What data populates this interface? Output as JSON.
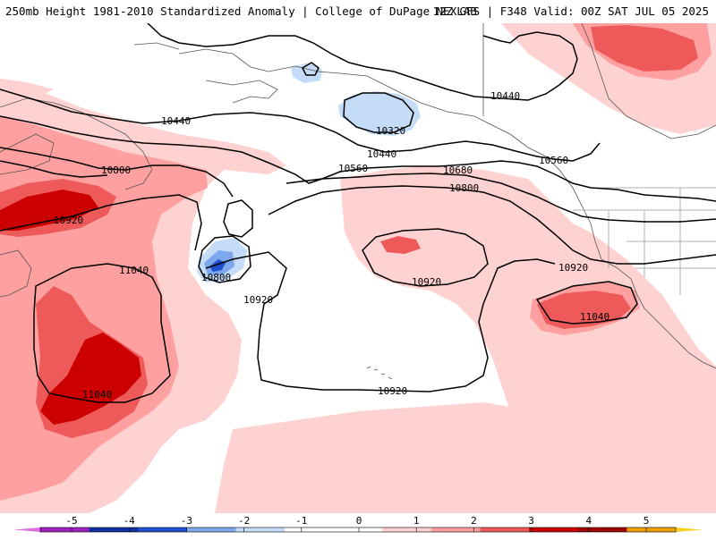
{
  "header": {
    "title_left": "250mb Height 1981-2010 Standardized Anomaly | College of DuPage NEXLAB",
    "title_right": "12Z GFS | F348 Valid: 00Z SAT JUL 05 2025"
  },
  "contour_labels": [
    {
      "id": "c1",
      "text": "10440"
    },
    {
      "id": "c2",
      "text": "10320"
    },
    {
      "id": "c3",
      "text": "10440"
    },
    {
      "id": "c4",
      "text": "10440"
    },
    {
      "id": "c5",
      "text": "10560"
    },
    {
      "id": "c6",
      "text": "10560"
    },
    {
      "id": "c7",
      "text": "10680"
    },
    {
      "id": "c8",
      "text": "10800"
    },
    {
      "id": "c9",
      "text": "10800"
    },
    {
      "id": "c10",
      "text": "10920"
    },
    {
      "id": "c11",
      "text": "10800"
    },
    {
      "id": "c12",
      "text": "11040"
    },
    {
      "id": "c13",
      "text": "10920"
    },
    {
      "id": "c14",
      "text": "10920"
    },
    {
      "id": "c15",
      "text": "10920"
    },
    {
      "id": "c16",
      "text": "11040"
    },
    {
      "id": "c17",
      "text": "11040"
    },
    {
      "id": "c18",
      "text": "10920"
    }
  ],
  "colorbar": {
    "ticks": [
      "-5",
      "-4",
      "-3",
      "-2",
      "-1",
      "0",
      "1",
      "2",
      "3",
      "4",
      "5"
    ],
    "colors": {
      "m6": "#e070e0",
      "m5": "#a020c0",
      "m4": "#1030a0",
      "m3": "#2050d0",
      "m2": "#7ea8ee",
      "m1": "#c4dcf8",
      "z0": "#ffffff",
      "z1": "#ffffff",
      "p1": "#ffd2d2",
      "p2": "#ffa0a0",
      "p3": "#ee5a5a",
      "p4": "#cc0000",
      "p5": "#a00000",
      "p6": "#f0a000",
      "p7": "#f8d020"
    }
  }
}
